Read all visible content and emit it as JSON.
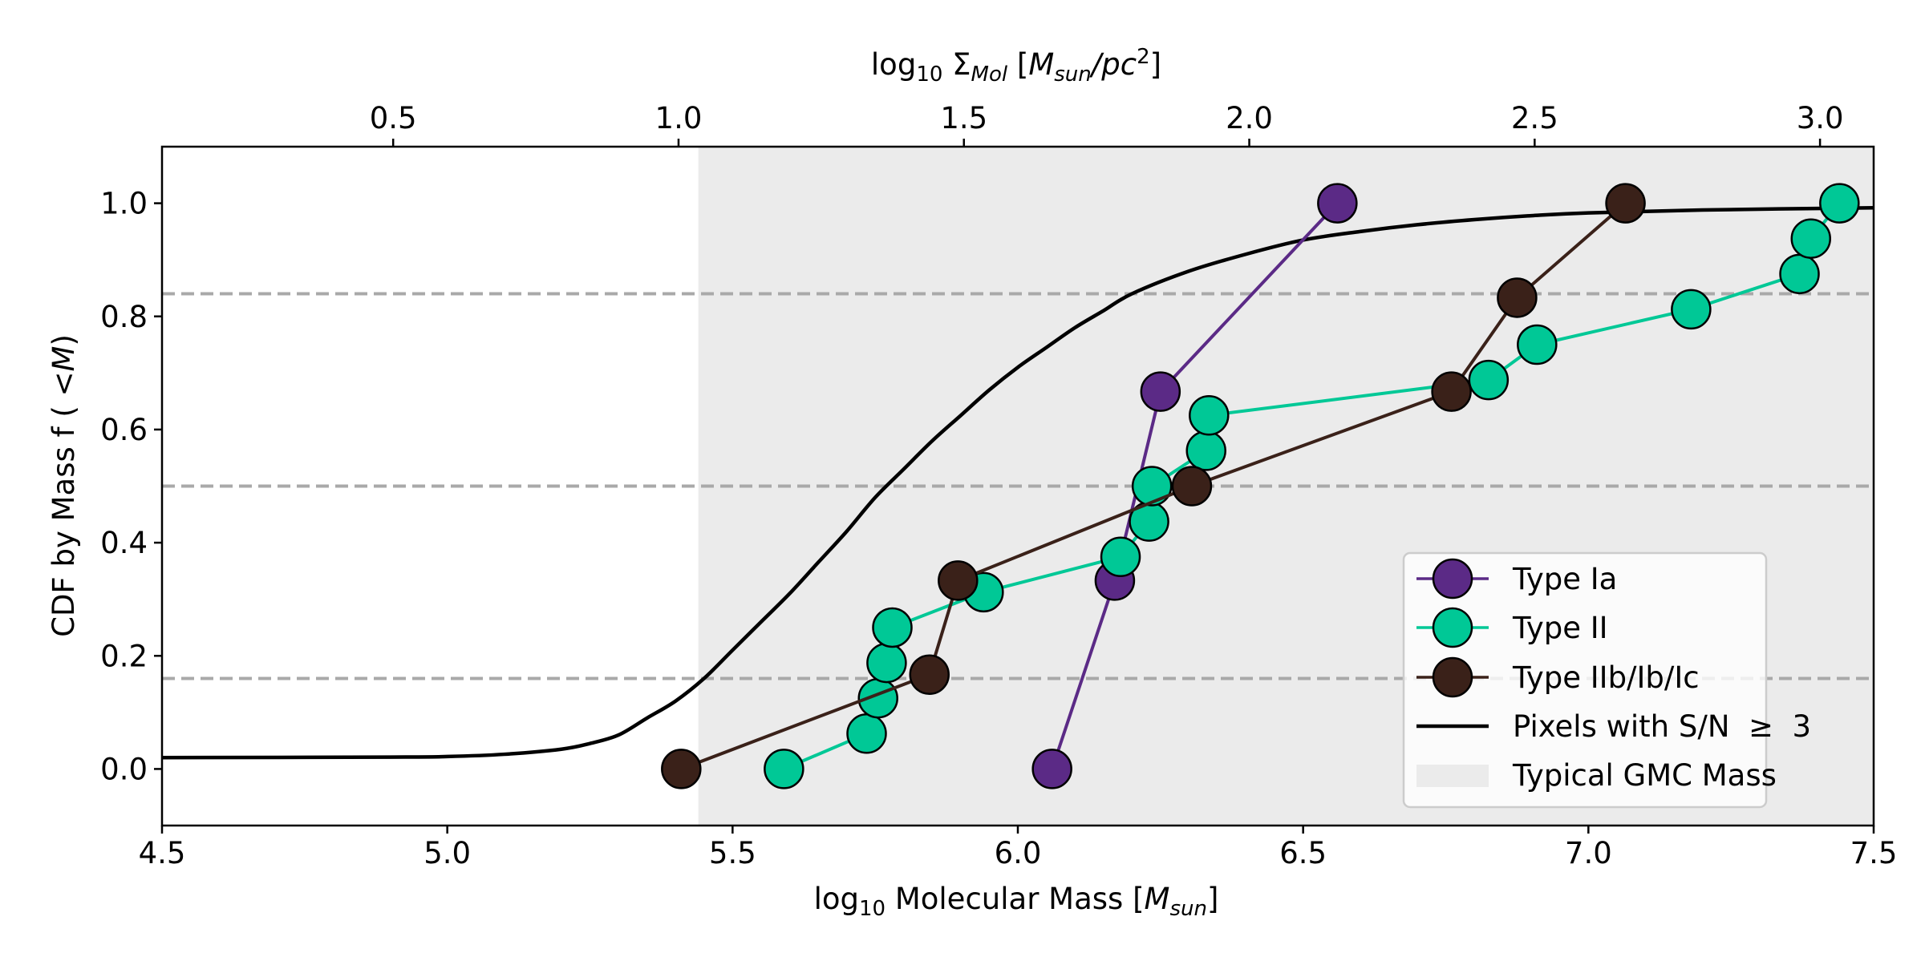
{
  "chart_data": {
    "type": "line",
    "x_axis": {
      "label_prefix": "log",
      "label_sub": "10",
      "label_main": " Molecular Mass [",
      "label_var": "M",
      "label_var_sub": "sun",
      "label_suffix": "]",
      "lim": [
        4.5,
        7.5
      ],
      "ticks": [
        4.5,
        5.0,
        5.5,
        6.0,
        6.5,
        7.0,
        7.5
      ],
      "tick_labels": [
        "4.5",
        "5.0",
        "5.5",
        "6.0",
        "6.5",
        "7.0",
        "7.5"
      ]
    },
    "x2_axis": {
      "label_prefix": "log",
      "label_sub": "10",
      "label_sigma": " Σ",
      "label_sigma_sub": "Mol",
      "label_open": " [",
      "label_var": "M",
      "label_var_sub": "sun",
      "label_slash": "/",
      "label_pc": "pc",
      "label_pc_sup": "2",
      "label_suffix": "]",
      "lim": [
        0.095,
        3.094
      ],
      "ticks": [
        0.5,
        1.0,
        1.5,
        2.0,
        2.5,
        3.0
      ],
      "tick_labels": [
        "0.5",
        "1.0",
        "1.5",
        "2.0",
        "2.5",
        "3.0"
      ]
    },
    "y_axis": {
      "label_main": "CDF by Mass f ( <",
      "label_var": "M",
      "label_suffix": ")",
      "lim": [
        -0.1,
        1.1
      ],
      "ticks": [
        0.0,
        0.2,
        0.4,
        0.6,
        0.8,
        1.0
      ],
      "tick_labels": [
        "0.0",
        "0.2",
        "0.4",
        "0.6",
        "0.8",
        "1.0"
      ]
    },
    "reference_lines": [
      0.16,
      0.5,
      0.84
    ],
    "shaded_region": {
      "name": "Typical GMC Mass",
      "x_start": 5.44,
      "x_end": 7.5,
      "color": "#ebebeb"
    },
    "curve": {
      "name": "Pixels with S/N  ≥  3",
      "color": "#000000",
      "x": [
        4.5,
        4.9,
        5.0,
        5.1,
        5.2,
        5.25,
        5.3,
        5.35,
        5.4,
        5.45,
        5.5,
        5.55,
        5.6,
        5.65,
        5.7,
        5.75,
        5.8,
        5.85,
        5.9,
        5.95,
        6.0,
        6.05,
        6.1,
        6.15,
        6.2,
        6.3,
        6.4,
        6.5,
        6.6,
        6.7,
        6.8,
        6.9,
        7.0,
        7.2,
        7.5
      ],
      "y": [
        0.02,
        0.021,
        0.022,
        0.026,
        0.035,
        0.045,
        0.06,
        0.09,
        0.12,
        0.16,
        0.21,
        0.26,
        0.31,
        0.365,
        0.42,
        0.48,
        0.53,
        0.58,
        0.625,
        0.67,
        0.71,
        0.745,
        0.78,
        0.81,
        0.84,
        0.88,
        0.91,
        0.935,
        0.95,
        0.962,
        0.971,
        0.978,
        0.983,
        0.988,
        0.992
      ]
    },
    "series": [
      {
        "name": "Type Ia",
        "color": "#5b2a86",
        "x": [
          6.06,
          6.17,
          6.25,
          6.56
        ],
        "y": [
          0.0,
          0.333,
          0.667,
          1.0
        ]
      },
      {
        "name": "Type II",
        "color": "#00c896",
        "x": [
          5.59,
          5.735,
          5.755,
          5.77,
          5.78,
          5.94,
          6.18,
          6.23,
          6.235,
          6.33,
          6.335,
          6.825,
          6.91,
          7.18,
          7.37,
          7.39,
          7.44
        ],
        "y": [
          0.0,
          0.0625,
          0.125,
          0.1875,
          0.25,
          0.3125,
          0.375,
          0.4375,
          0.5,
          0.5625,
          0.625,
          0.6875,
          0.75,
          0.8125,
          0.875,
          0.9375,
          1.0
        ]
      },
      {
        "name": "Type IIb/Ib/Ic",
        "color": "#3a2119",
        "x": [
          5.41,
          5.845,
          5.895,
          6.305,
          6.76,
          6.875,
          7.065
        ],
        "y": [
          0.0,
          0.1667,
          0.333,
          0.5,
          0.667,
          0.833,
          1.0
        ]
      }
    ],
    "legend": {
      "position": "lower right",
      "entries": [
        "Type Ia",
        "Type II",
        "Type IIb/Ib/Ic",
        "Pixels with S/N  ≥  3",
        "Typical GMC Mass"
      ]
    },
    "grid": false
  }
}
